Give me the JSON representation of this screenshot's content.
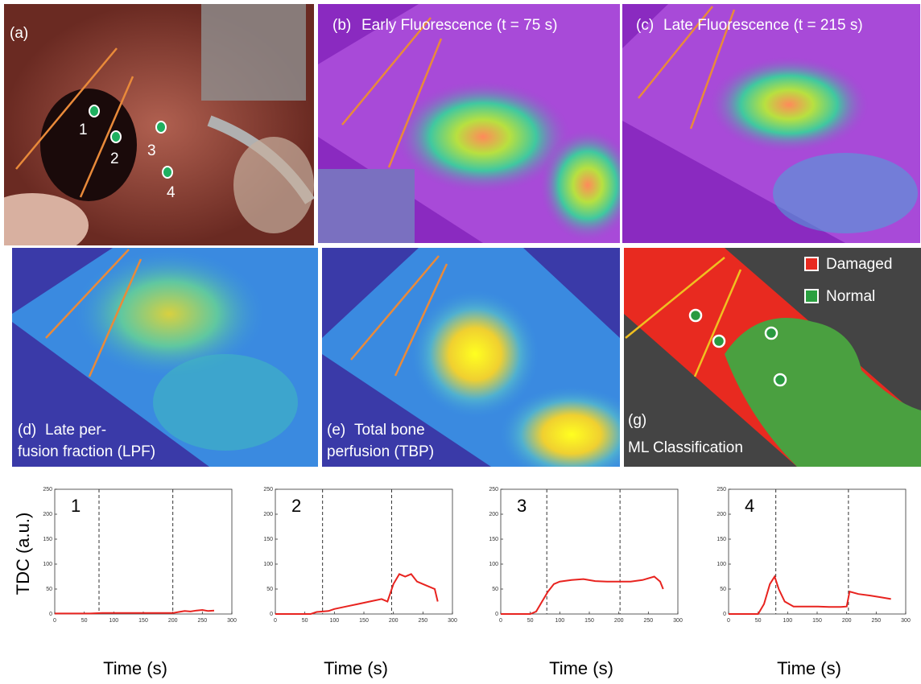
{
  "panels": [
    {
      "label": "(a)",
      "points": [
        "1",
        "2",
        "3",
        "4"
      ]
    },
    {
      "label": "(b)",
      "title": "Early Fluorescence (t = 75 s)"
    },
    {
      "label": "(c)",
      "title": "Late Fluorescence (t = 215 s)"
    },
    {
      "label": "(d)",
      "title": [
        "Late per-",
        "fusion fraction (LPF)"
      ]
    },
    {
      "label": "(e)",
      "title": [
        "Total bone",
        "perfusion (TBP)"
      ]
    },
    {
      "label": "(g)",
      "title": "ML Classification",
      "legend": [
        "Damaged",
        "Normal"
      ]
    }
  ],
  "y_axis_label": "TDC (a.u.)",
  "chart_data": [
    {
      "type": "line",
      "title": "1",
      "x_label": "Time (s)",
      "x": [
        0,
        20,
        40,
        60,
        80,
        100,
        120,
        140,
        160,
        180,
        200,
        210,
        220,
        230,
        240,
        250,
        260,
        270
      ],
      "series": [
        {
          "color": "#e8231f",
          "values": [
            1,
            1,
            1,
            1,
            2,
            2,
            2,
            2,
            2,
            2,
            2,
            4,
            6,
            5,
            7,
            8,
            6,
            7
          ]
        }
      ],
      "vlines": [
        75,
        200
      ],
      "xlim": [
        0,
        300
      ],
      "ylim": [
        0,
        250
      ],
      "xticks": [
        0,
        50,
        100,
        150,
        200,
        250,
        300
      ],
      "yticks": [
        0,
        50,
        100,
        150,
        200,
        250
      ]
    },
    {
      "type": "line",
      "title": "2",
      "x_label": "Time (s)",
      "x": [
        0,
        20,
        40,
        60,
        70,
        80,
        90,
        100,
        120,
        140,
        160,
        180,
        190,
        200,
        210,
        220,
        230,
        240,
        250,
        260,
        270,
        275
      ],
      "series": [
        {
          "color": "#e8231f",
          "values": [
            0,
            0,
            0,
            0,
            4,
            5,
            6,
            10,
            15,
            20,
            25,
            30,
            25,
            60,
            80,
            75,
            80,
            65,
            60,
            55,
            50,
            25
          ]
        }
      ],
      "vlines": [
        80,
        197
      ],
      "xlim": [
        0,
        300
      ],
      "ylim": [
        0,
        250
      ],
      "xticks": [
        0,
        50,
        100,
        150,
        200,
        250,
        300
      ],
      "yticks": [
        0,
        50,
        100,
        150,
        200,
        250
      ]
    },
    {
      "type": "line",
      "title": "3",
      "x_label": "Time (s)",
      "x": [
        0,
        20,
        40,
        50,
        60,
        70,
        80,
        90,
        100,
        120,
        140,
        160,
        180,
        200,
        220,
        240,
        260,
        270,
        275
      ],
      "series": [
        {
          "color": "#e8231f",
          "values": [
            0,
            0,
            0,
            0,
            5,
            25,
            45,
            60,
            65,
            68,
            70,
            66,
            65,
            65,
            65,
            68,
            75,
            65,
            50
          ]
        }
      ],
      "vlines": [
        78,
        202
      ],
      "xlim": [
        0,
        300
      ],
      "ylim": [
        0,
        250
      ],
      "xticks": [
        0,
        50,
        100,
        150,
        200,
        250,
        300
      ],
      "yticks": [
        0,
        50,
        100,
        150,
        200,
        250
      ]
    },
    {
      "type": "line",
      "title": "4",
      "x_label": "Time (s)",
      "x": [
        0,
        20,
        40,
        50,
        60,
        70,
        78,
        85,
        95,
        110,
        130,
        150,
        170,
        190,
        200,
        205,
        220,
        240,
        260,
        275
      ],
      "series": [
        {
          "color": "#e8231f",
          "values": [
            0,
            0,
            0,
            0,
            20,
            60,
            75,
            50,
            25,
            15,
            15,
            15,
            14,
            14,
            15,
            45,
            40,
            37,
            33,
            30
          ]
        }
      ],
      "vlines": [
        80,
        203
      ],
      "xlim": [
        0,
        300
      ],
      "ylim": [
        0,
        250
      ],
      "xticks": [
        0,
        50,
        100,
        150,
        200,
        250,
        300
      ],
      "yticks": [
        0,
        50,
        100,
        150,
        200,
        250
      ]
    }
  ]
}
